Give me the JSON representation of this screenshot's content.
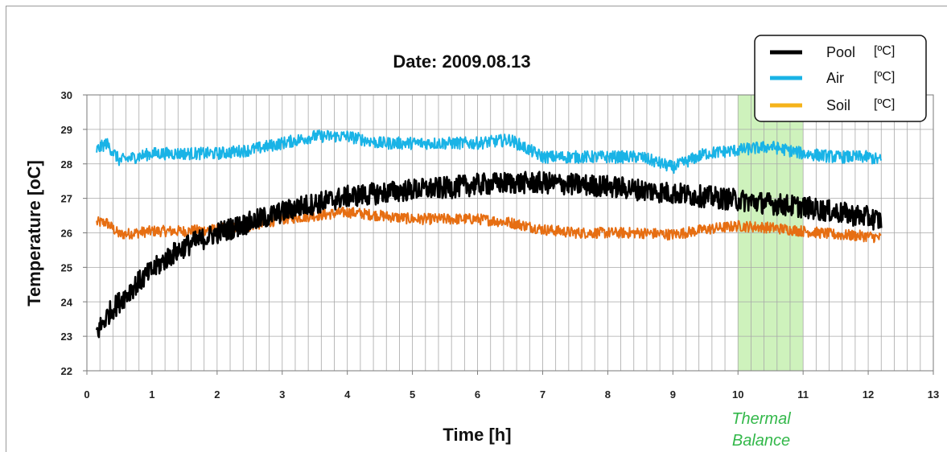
{
  "chart_data": {
    "type": "line",
    "title": "Date:  2009.08.13",
    "xlabel": "Time [h]",
    "ylabel": "Temperature  [oC]",
    "xlim": [
      0,
      13
    ],
    "ylim": [
      22,
      30
    ],
    "x_ticks": [
      "0",
      "1",
      "2",
      "3",
      "4",
      "5",
      "6",
      "7",
      "8",
      "9",
      "10",
      "11",
      "12",
      "13"
    ],
    "y_ticks": [
      "22",
      "23",
      "24",
      "25",
      "26",
      "27",
      "28",
      "29",
      "30"
    ],
    "grid": true,
    "legend_position": "top-right",
    "legend": [
      {
        "name": "Pool",
        "unit": "[ºC]",
        "color": "#000000"
      },
      {
        "name": "Air",
        "unit": "[ºC]",
        "color": "#19b3e6"
      },
      {
        "name": "Soil",
        "unit": "[ºC]",
        "color": "#f5b31a"
      }
    ],
    "highlight": {
      "x_range": [
        10,
        11
      ],
      "label_line1": "Thermal",
      "label_line2": "Balance",
      "color": "#c6f0b0"
    },
    "series": [
      {
        "name": "Pool",
        "color": "#000000",
        "x": [
          0.15,
          0.25,
          0.35,
          0.5,
          0.75,
          1.0,
          1.25,
          1.5,
          1.75,
          2.0,
          2.25,
          2.5,
          2.75,
          3.0,
          3.25,
          3.5,
          3.75,
          4.0,
          4.25,
          4.5,
          4.75,
          5.0,
          5.5,
          6.0,
          6.5,
          7.0,
          7.5,
          8.0,
          8.5,
          9.0,
          9.5,
          10.0,
          10.5,
          11.0,
          11.5,
          12.0,
          12.2
        ],
        "y": [
          23.1,
          23.4,
          23.7,
          24.0,
          24.5,
          24.9,
          25.3,
          25.6,
          25.8,
          26.0,
          26.15,
          26.3,
          26.45,
          26.6,
          26.75,
          26.85,
          26.95,
          27.05,
          27.1,
          27.15,
          27.2,
          27.25,
          27.3,
          27.4,
          27.45,
          27.45,
          27.4,
          27.35,
          27.25,
          27.15,
          27.05,
          26.95,
          26.85,
          26.75,
          26.6,
          26.45,
          26.35
        ]
      },
      {
        "name": "Air",
        "color": "#19b3e6",
        "x": [
          0.15,
          0.3,
          0.5,
          0.75,
          1.0,
          1.5,
          2.0,
          2.5,
          3.0,
          3.5,
          4.0,
          4.5,
          5.0,
          5.5,
          6.0,
          6.5,
          7.0,
          7.5,
          8.0,
          8.5,
          9.0,
          9.5,
          10.0,
          10.5,
          11.0,
          11.5,
          12.0,
          12.2
        ],
        "y": [
          28.4,
          28.6,
          28.1,
          28.2,
          28.3,
          28.3,
          28.3,
          28.4,
          28.6,
          28.8,
          28.8,
          28.6,
          28.6,
          28.6,
          28.6,
          28.7,
          28.2,
          28.2,
          28.2,
          28.2,
          27.9,
          28.3,
          28.4,
          28.5,
          28.3,
          28.2,
          28.2,
          28.1
        ]
      },
      {
        "name": "Soil",
        "color": "#e66e12",
        "x": [
          0.15,
          0.3,
          0.5,
          0.75,
          1.0,
          1.5,
          2.0,
          2.5,
          3.0,
          3.5,
          4.0,
          4.5,
          5.0,
          5.5,
          6.0,
          6.5,
          7.0,
          7.5,
          8.0,
          8.5,
          9.0,
          9.5,
          10.0,
          10.5,
          11.0,
          11.5,
          12.0,
          12.2
        ],
        "y": [
          26.3,
          26.3,
          25.95,
          26.0,
          26.05,
          26.05,
          26.1,
          26.2,
          26.4,
          26.5,
          26.6,
          26.5,
          26.4,
          26.4,
          26.4,
          26.3,
          26.1,
          26.0,
          26.0,
          26.0,
          25.95,
          26.1,
          26.2,
          26.15,
          26.05,
          25.95,
          25.9,
          25.85
        ]
      }
    ]
  }
}
